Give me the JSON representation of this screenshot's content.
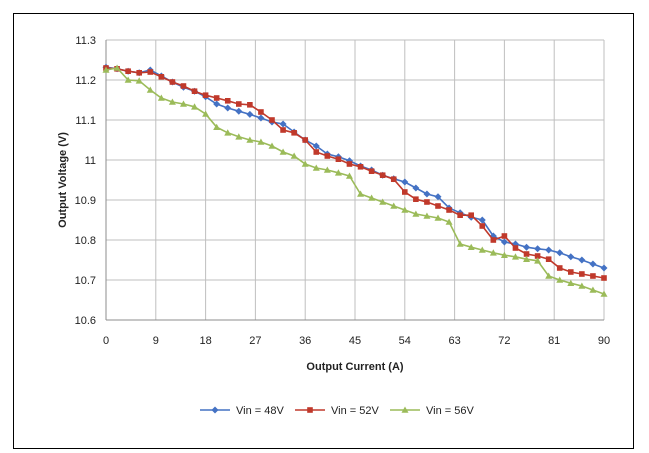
{
  "chart_data": {
    "type": "line",
    "xlabel": "Output Current (A)",
    "ylabel": "Output Voltage (V)",
    "xlim": [
      0,
      90
    ],
    "ylim": [
      10.6,
      11.3
    ],
    "xticks": [
      "0",
      "9",
      "18",
      "27",
      "36",
      "45",
      "54",
      "63",
      "72",
      "81",
      "90"
    ],
    "yticks": [
      "11.3",
      "11.2",
      "11.1",
      "11",
      "10.9",
      "10.8",
      "10.7",
      "10.6"
    ],
    "grid": true,
    "legend_position": "bottom",
    "series": [
      {
        "name": "Vin = 48V",
        "color": "#4472c4",
        "marker": "diamond",
        "x": [
          0,
          2,
          4,
          6,
          8,
          10,
          12,
          14,
          16,
          18,
          20,
          22,
          24,
          26,
          28,
          30,
          32,
          34,
          36,
          38,
          40,
          42,
          44,
          46,
          48,
          50,
          52,
          54,
          56,
          58,
          60,
          62,
          64,
          66,
          68,
          70,
          72,
          74,
          76,
          78,
          80,
          82,
          84,
          86,
          88,
          90
        ],
        "y": [
          11.232,
          11.228,
          11.222,
          11.218,
          11.225,
          11.21,
          11.195,
          11.182,
          11.172,
          11.158,
          11.14,
          11.13,
          11.122,
          11.114,
          11.105,
          11.095,
          11.09,
          11.07,
          11.05,
          11.035,
          11.015,
          11.008,
          10.998,
          10.985,
          10.975,
          10.962,
          10.953,
          10.945,
          10.93,
          10.915,
          10.908,
          10.88,
          10.868,
          10.857,
          10.85,
          10.81,
          10.795,
          10.79,
          10.782,
          10.778,
          10.775,
          10.768,
          10.758,
          10.75,
          10.74,
          10.73
        ]
      },
      {
        "name": "Vin = 52V",
        "color": "#c0392b",
        "marker": "square",
        "x": [
          0,
          2,
          4,
          6,
          8,
          10,
          12,
          14,
          16,
          18,
          20,
          22,
          24,
          26,
          28,
          30,
          32,
          34,
          36,
          38,
          40,
          42,
          44,
          46,
          48,
          50,
          52,
          54,
          56,
          58,
          60,
          62,
          64,
          66,
          68,
          70,
          72,
          74,
          76,
          78,
          80,
          82,
          84,
          86,
          88,
          90
        ],
        "y": [
          11.23,
          11.228,
          11.222,
          11.218,
          11.22,
          11.208,
          11.195,
          11.185,
          11.172,
          11.162,
          11.155,
          11.148,
          11.14,
          11.138,
          11.12,
          11.1,
          11.075,
          11.068,
          11.05,
          11.02,
          11.01,
          11.002,
          10.99,
          10.983,
          10.972,
          10.962,
          10.952,
          10.92,
          10.902,
          10.895,
          10.885,
          10.875,
          10.862,
          10.862,
          10.835,
          10.8,
          10.81,
          10.78,
          10.765,
          10.76,
          10.752,
          10.73,
          10.72,
          10.715,
          10.71,
          10.705
        ]
      },
      {
        "name": "Vin = 56V",
        "color": "#9bbb59",
        "marker": "triangle",
        "x": [
          0,
          2,
          4,
          6,
          8,
          10,
          12,
          14,
          16,
          18,
          20,
          22,
          24,
          26,
          28,
          30,
          32,
          34,
          36,
          38,
          40,
          42,
          44,
          46,
          48,
          50,
          52,
          54,
          56,
          58,
          60,
          62,
          64,
          66,
          68,
          70,
          72,
          74,
          76,
          78,
          80,
          82,
          84,
          86,
          88,
          90
        ],
        "y": [
          11.225,
          11.23,
          11.2,
          11.198,
          11.175,
          11.155,
          11.145,
          11.14,
          11.133,
          11.115,
          11.082,
          11.068,
          11.058,
          11.05,
          11.045,
          11.035,
          11.02,
          11.01,
          10.99,
          10.98,
          10.975,
          10.968,
          10.96,
          10.915,
          10.905,
          10.895,
          10.885,
          10.875,
          10.865,
          10.86,
          10.855,
          10.845,
          10.79,
          10.782,
          10.775,
          10.768,
          10.762,
          10.758,
          10.752,
          10.748,
          10.71,
          10.7,
          10.692,
          10.685,
          10.675,
          10.665
        ]
      }
    ]
  }
}
